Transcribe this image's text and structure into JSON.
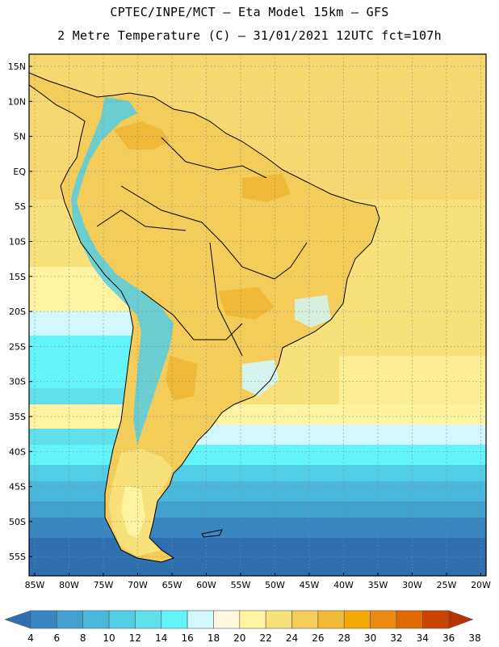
{
  "header": {
    "line1": "CPTEC/INPE/MCT –  Eta Model 15km – GFS",
    "line2": "2 Metre Temperature (C) – 31/01/2021 12UTC fct=107h"
  },
  "lat_labels": [
    "15N",
    "10N",
    "5N",
    "EQ",
    "5S",
    "10S",
    "15S",
    "20S",
    "25S",
    "30S",
    "35S",
    "40S",
    "45S",
    "50S",
    "55S"
  ],
  "lon_labels": [
    "85W",
    "80W",
    "75W",
    "70W",
    "65W",
    "60W",
    "55W",
    "50W",
    "45W",
    "40W",
    "35W",
    "30W",
    "25W",
    "20W"
  ],
  "colorbar": {
    "values": [
      "4",
      "6",
      "8",
      "10",
      "12",
      "14",
      "16",
      "18",
      "20",
      "22",
      "24",
      "26",
      "28",
      "30",
      "32",
      "34",
      "36",
      "38"
    ],
    "colors": [
      "#2f6fb0",
      "#3a86c0",
      "#42a0cf",
      "#4ab8dc",
      "#52cde5",
      "#5fe0ec",
      "#63f4fb",
      "#d2f8ff",
      "#fff8e0",
      "#fdf3a0",
      "#f8e07a",
      "#f4cc5a",
      "#f0b938",
      "#f5a800",
      "#ec8a10",
      "#e06a00",
      "#c84400",
      "#b83200"
    ]
  }
}
